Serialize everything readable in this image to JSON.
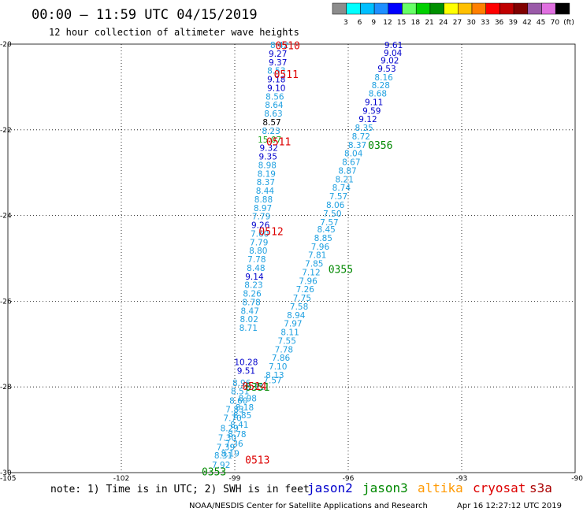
{
  "header": {
    "title": "00:00 – 11:59 UTC 04/15/2019",
    "subtitle": "12 hour collection of altimeter wave heights"
  },
  "color_scale": {
    "labels": [
      "3",
      "6",
      "9",
      "12",
      "15",
      "18",
      "21",
      "24",
      "27",
      "30",
      "33",
      "36",
      "39",
      "42",
      "45",
      "70",
      "(ft)"
    ],
    "colors": [
      "#8c8c8c",
      "#00ffff",
      "#00bfff",
      "#1f8fff",
      "#0000ff",
      "#66ff66",
      "#00d000",
      "#009000",
      "#ffff00",
      "#ffc000",
      "#ff8000",
      "#ff0000",
      "#c00000",
      "#800000",
      "#9a5aa8",
      "#e070e0",
      "#000000"
    ]
  },
  "chart_data": {
    "type": "scatter",
    "xlim": [
      -105,
      -90
    ],
    "ylim": [
      -30,
      -20
    ],
    "x_ticks": [
      "-105",
      "-102",
      "-99",
      "-96",
      "-93",
      "-90"
    ],
    "y_ticks": [
      "-20",
      "-22",
      "-24",
      "-26",
      "-28",
      "-30"
    ],
    "grid": true,
    "series": [
      {
        "name": "jason2",
        "color": "#0000cc",
        "points": [
          {
            "lon": -94.8,
            "lat": -20.02,
            "label": "9.61",
            "color": "#0000cc"
          },
          {
            "lon": -94.82,
            "lat": -20.2,
            "label": "9.04",
            "color": "#0000cc"
          },
          {
            "lon": -94.9,
            "lat": -20.38,
            "label": "9.02",
            "color": "#0000cc"
          },
          {
            "lon": -94.98,
            "lat": -20.57,
            "label": "9.53",
            "color": "#0000cc"
          },
          {
            "lon": -95.06,
            "lat": -20.77,
            "label": "8.16",
            "color": "#1fa0e0"
          },
          {
            "lon": -95.14,
            "lat": -20.96,
            "label": "8.28",
            "color": "#1fa0e0"
          },
          {
            "lon": -95.22,
            "lat": -21.15,
            "label": "8.68",
            "color": "#1fa0e0"
          },
          {
            "lon": -95.32,
            "lat": -21.35,
            "label": "9.11",
            "color": "#0000cc"
          },
          {
            "lon": -95.38,
            "lat": -21.55,
            "label": "9.59",
            "color": "#0000cc"
          },
          {
            "lon": -95.48,
            "lat": -21.75,
            "label": "9.12",
            "color": "#0000cc"
          },
          {
            "lon": -95.58,
            "lat": -21.95,
            "label": "8.35",
            "color": "#1fa0e0"
          },
          {
            "lon": -95.66,
            "lat": -22.15,
            "label": "8.72",
            "color": "#1fa0e0"
          },
          {
            "lon": -95.76,
            "lat": -22.35,
            "label": "8.37",
            "color": "#1fa0e0"
          },
          {
            "lon": -95.86,
            "lat": -22.55,
            "label": "8.04",
            "color": "#1fa0e0"
          },
          {
            "lon": -95.92,
            "lat": -22.75,
            "label": "8.67",
            "color": "#1fa0e0"
          },
          {
            "lon": -96.02,
            "lat": -22.95,
            "label": "8.87",
            "color": "#1fa0e0"
          },
          {
            "lon": -96.1,
            "lat": -23.15,
            "label": "8.21",
            "color": "#1fa0e0"
          },
          {
            "lon": -96.18,
            "lat": -23.35,
            "label": "8.74",
            "color": "#1fa0e0"
          },
          {
            "lon": -96.26,
            "lat": -23.55,
            "label": "7.57",
            "color": "#1fa0e0"
          },
          {
            "lon": -96.34,
            "lat": -23.75,
            "label": "8.06",
            "color": "#1fa0e0"
          },
          {
            "lon": -96.42,
            "lat": -23.95,
            "label": "7.50",
            "color": "#1fa0e0"
          },
          {
            "lon": -96.5,
            "lat": -24.15,
            "label": "7.57",
            "color": "#1fa0e0"
          },
          {
            "lon": -96.58,
            "lat": -24.32,
            "label": "8.45",
            "color": "#1fa0e0"
          },
          {
            "lon": -96.66,
            "lat": -24.52,
            "label": "8.85",
            "color": "#1fa0e0"
          },
          {
            "lon": -96.74,
            "lat": -24.72,
            "label": "7.96",
            "color": "#1fa0e0"
          },
          {
            "lon": -96.82,
            "lat": -24.92,
            "label": "7.81",
            "color": "#1fa0e0"
          },
          {
            "lon": -96.9,
            "lat": -25.12,
            "label": "7.85",
            "color": "#1fa0e0"
          },
          {
            "lon": -96.98,
            "lat": -25.32,
            "label": "7.12",
            "color": "#1fa0e0"
          },
          {
            "lon": -97.06,
            "lat": -25.52,
            "label": "7.96",
            "color": "#1fa0e0"
          },
          {
            "lon": -97.14,
            "lat": -25.72,
            "label": "7.26",
            "color": "#1fa0e0"
          },
          {
            "lon": -97.22,
            "lat": -25.92,
            "label": "7.75",
            "color": "#1fa0e0"
          },
          {
            "lon": -97.3,
            "lat": -26.12,
            "label": "7.58",
            "color": "#1fa0e0"
          },
          {
            "lon": -97.38,
            "lat": -26.32,
            "label": "8.94",
            "color": "#1fa0e0"
          },
          {
            "lon": -97.46,
            "lat": -26.52,
            "label": "7.97",
            "color": "#1fa0e0"
          },
          {
            "lon": -97.54,
            "lat": -26.72,
            "label": "8.11",
            "color": "#1fa0e0"
          },
          {
            "lon": -97.62,
            "lat": -26.92,
            "label": "7.55",
            "color": "#1fa0e0"
          },
          {
            "lon": -97.7,
            "lat": -27.12,
            "label": "7.78",
            "color": "#1fa0e0"
          },
          {
            "lon": -97.78,
            "lat": -27.32,
            "label": "7.86",
            "color": "#1fa0e0"
          },
          {
            "lon": -97.86,
            "lat": -27.52,
            "label": "7.10",
            "color": "#1fa0e0"
          },
          {
            "lon": -97.94,
            "lat": -27.72,
            "label": "8.13",
            "color": "#1fa0e0"
          },
          {
            "lon": -98.0,
            "lat": -27.84,
            "label": "7.57",
            "color": "#1fa0e0"
          },
          {
            "lon": -98.46,
            "lat": -28.0,
            "label": "8.31",
            "color": "#1fa0e0"
          },
          {
            "lon": -98.66,
            "lat": -28.26,
            "label": "8.98",
            "color": "#1fa0e0"
          },
          {
            "lon": -98.74,
            "lat": -28.47,
            "label": "8.18",
            "color": "#1fa0e0"
          },
          {
            "lon": -98.8,
            "lat": -28.66,
            "label": "8.85",
            "color": "#1fa0e0"
          },
          {
            "lon": -98.88,
            "lat": -28.88,
            "label": "8.41",
            "color": "#1fa0e0"
          },
          {
            "lon": -98.94,
            "lat": -29.1,
            "label": "8.78",
            "color": "#1fa0e0"
          },
          {
            "lon": -99.02,
            "lat": -29.32,
            "label": "7.36",
            "color": "#1fa0e0"
          },
          {
            "lon": -99.12,
            "lat": -29.55,
            "label": "8.19",
            "color": "#1fa0e0"
          }
        ]
      },
      {
        "name": "jason3",
        "color": "#009000",
        "points": [
          {
            "lon": -97.82,
            "lat": -20.02,
            "label": "8.42",
            "color": "#1fa0e0"
          },
          {
            "lon": -97.86,
            "lat": -20.22,
            "label": "9.27",
            "color": "#0000cc"
          },
          {
            "lon": -97.86,
            "lat": -20.42,
            "label": "9.37",
            "color": "#0000cc"
          },
          {
            "lon": -97.9,
            "lat": -20.62,
            "label": "8.53",
            "color": "#1fa0e0"
          },
          {
            "lon": -97.9,
            "lat": -20.82,
            "label": "9.18",
            "color": "#0000cc"
          },
          {
            "lon": -97.9,
            "lat": -21.02,
            "label": "9.10",
            "color": "#0000cc"
          },
          {
            "lon": -97.94,
            "lat": -21.22,
            "label": "8.56",
            "color": "#1fa0e0"
          },
          {
            "lon": -97.96,
            "lat": -21.42,
            "label": "8.64",
            "color": "#1fa0e0"
          },
          {
            "lon": -97.98,
            "lat": -21.62,
            "label": "8.63",
            "color": "#1fa0e0"
          },
          {
            "lon": -98.02,
            "lat": -21.82,
            "label": "8.57",
            "color": "#000000"
          },
          {
            "lon": -98.04,
            "lat": -22.02,
            "label": "8.23",
            "color": "#1fa0e0"
          },
          {
            "lon": -98.08,
            "lat": -22.22,
            "label": "15.07",
            "color": "#22aa22"
          },
          {
            "lon": -98.1,
            "lat": -22.42,
            "label": "9.32",
            "color": "#0000cc"
          },
          {
            "lon": -98.12,
            "lat": -22.62,
            "label": "9.35",
            "color": "#0000cc"
          },
          {
            "lon": -98.14,
            "lat": -22.82,
            "label": "8.98",
            "color": "#1fa0e0"
          },
          {
            "lon": -98.16,
            "lat": -23.02,
            "label": "8.19",
            "color": "#1fa0e0"
          },
          {
            "lon": -98.18,
            "lat": -23.22,
            "label": "8.37",
            "color": "#1fa0e0"
          },
          {
            "lon": -98.2,
            "lat": -23.42,
            "label": "8.44",
            "color": "#1fa0e0"
          },
          {
            "lon": -98.24,
            "lat": -23.62,
            "label": "8.88",
            "color": "#1fa0e0"
          },
          {
            "lon": -98.26,
            "lat": -23.82,
            "label": "8.97",
            "color": "#1fa0e0"
          },
          {
            "lon": -98.3,
            "lat": -24.02,
            "label": "7.79",
            "color": "#1fa0e0"
          },
          {
            "lon": -98.32,
            "lat": -24.22,
            "label": "9.26",
            "color": "#0000cc"
          },
          {
            "lon": -98.34,
            "lat": -24.42,
            "label": "7.60",
            "color": "#1fa0e0"
          },
          {
            "lon": -98.36,
            "lat": -24.62,
            "label": "7.79",
            "color": "#1fa0e0"
          },
          {
            "lon": -98.38,
            "lat": -24.82,
            "label": "8.80",
            "color": "#1fa0e0"
          },
          {
            "lon": -98.42,
            "lat": -25.02,
            "label": "7.78",
            "color": "#1fa0e0"
          },
          {
            "lon": -98.44,
            "lat": -25.22,
            "label": "8.48",
            "color": "#1fa0e0"
          },
          {
            "lon": -98.48,
            "lat": -25.42,
            "label": "9.14",
            "color": "#0000cc"
          },
          {
            "lon": -98.5,
            "lat": -25.62,
            "label": "8.23",
            "color": "#1fa0e0"
          },
          {
            "lon": -98.54,
            "lat": -25.82,
            "label": "8.26",
            "color": "#1fa0e0"
          },
          {
            "lon": -98.56,
            "lat": -26.02,
            "label": "8.78",
            "color": "#1fa0e0"
          },
          {
            "lon": -98.6,
            "lat": -26.22,
            "label": "8.47",
            "color": "#1fa0e0"
          },
          {
            "lon": -98.62,
            "lat": -26.42,
            "label": "8.02",
            "color": "#1fa0e0"
          },
          {
            "lon": -98.64,
            "lat": -26.62,
            "label": "8.71",
            "color": "#1fa0e0"
          },
          {
            "lon": -98.7,
            "lat": -27.42,
            "label": "10.28",
            "color": "#0000cc"
          },
          {
            "lon": -98.7,
            "lat": -27.62,
            "label": "9.51",
            "color": "#0000cc"
          },
          {
            "lon": -98.82,
            "lat": -27.9,
            "label": "8.96",
            "color": "#1fa0e0"
          },
          {
            "lon": -98.86,
            "lat": -28.1,
            "label": "8.51",
            "color": "#1fa0e0"
          },
          {
            "lon": -98.9,
            "lat": -28.32,
            "label": "8.60",
            "color": "#1fa0e0"
          },
          {
            "lon": -99.0,
            "lat": -28.52,
            "label": "7.83",
            "color": "#1fa0e0"
          },
          {
            "lon": -99.06,
            "lat": -28.72,
            "label": "7.70",
            "color": "#1fa0e0"
          },
          {
            "lon": -99.14,
            "lat": -28.96,
            "label": "8.29",
            "color": "#1fa0e0"
          },
          {
            "lon": -99.2,
            "lat": -29.18,
            "label": "7.30",
            "color": "#1fa0e0"
          },
          {
            "lon": -99.24,
            "lat": -29.4,
            "label": "7.39",
            "color": "#1fa0e0"
          },
          {
            "lon": -99.3,
            "lat": -29.6,
            "label": "8.31",
            "color": "#1fa0e0"
          },
          {
            "lon": -99.36,
            "lat": -29.82,
            "label": "7.92",
            "color": "#1fa0e0"
          }
        ]
      }
    ],
    "pass_labels": [
      {
        "lon": -97.6,
        "lat": -20.03,
        "label": "0510",
        "color": "#dd0000"
      },
      {
        "lon": -97.64,
        "lat": -20.7,
        "label": "0511",
        "color": "#dd0000"
      },
      {
        "lon": -97.84,
        "lat": -22.27,
        "label": "0511",
        "color": "#dd0000"
      },
      {
        "lon": -95.15,
        "lat": -22.35,
        "label": "0356",
        "color": "#008800"
      },
      {
        "lon": -98.04,
        "lat": -24.37,
        "label": "0512",
        "color": "#dd0000"
      },
      {
        "lon": -96.2,
        "lat": -25.25,
        "label": "0355",
        "color": "#008800"
      },
      {
        "lon": -98.4,
        "lat": -28.0,
        "label": "0351",
        "color": "#008800"
      },
      {
        "lon": -98.48,
        "lat": -27.98,
        "label": "0514",
        "color": "#dd0000"
      },
      {
        "lon": -98.4,
        "lat": -29.7,
        "label": "0513",
        "color": "#dd0000"
      },
      {
        "lon": -99.55,
        "lat": -29.97,
        "label": "0353",
        "color": "#008800"
      }
    ]
  },
  "footer": {
    "note": "note: 1) Time is in UTC; 2) SWH is in feet",
    "satellites": [
      {
        "name": "jason2",
        "color": "#0000cc"
      },
      {
        "name": "jason3",
        "color": "#008800"
      },
      {
        "name": "altika",
        "color": "#ff9900"
      },
      {
        "name": "cryosat",
        "color": "#dd0000"
      },
      {
        "name": "s3a",
        "color": "#aa0000"
      }
    ],
    "credit": "NOAA/NESDIS Center for Satellite Applications and Research",
    "timestamp": "Apr 16 12:27:12 UTC 2019"
  }
}
